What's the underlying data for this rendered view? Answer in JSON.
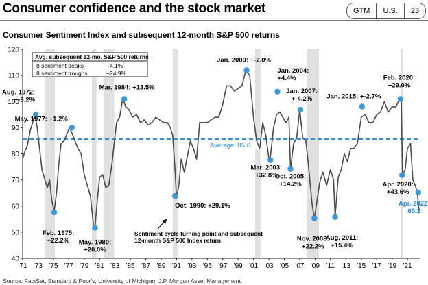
{
  "header": {
    "title": "Consumer confidence and the stock market",
    "badge": [
      "GTM",
      "U.S.",
      "23"
    ]
  },
  "source": "Source: FactSet, Standard & Poor's, University of Michigan, J.P. Morgan Asset Management.",
  "colors": {
    "line": "#4a4a4a",
    "point": "#3a9ad9",
    "average": "#1e88e5",
    "recession": "#e0e0e0",
    "highlight": "#1e88e5"
  },
  "chart_data": {
    "type": "line",
    "title": "Consumer Sentiment Index and subsequent 12-month S&P 500 returns",
    "xlabel": "",
    "ylabel": "",
    "xlim": [
      1971,
      2022.6
    ],
    "ylim": [
      40,
      120
    ],
    "y_ticks": [
      40,
      50,
      60,
      70,
      80,
      90,
      100,
      110,
      120
    ],
    "x_ticks": [
      "'71",
      "'73",
      "'75",
      "'77",
      "'79",
      "'81",
      "'83",
      "'85",
      "'87",
      "'89",
      "'91",
      "'93",
      "'95",
      "'97",
      "'99",
      "'01",
      "'03",
      "'05",
      "'07",
      "'09",
      "'11",
      "'13",
      "'15",
      "'17",
      "'19",
      "'21"
    ],
    "grid": false,
    "recessions": [
      [
        1973.9,
        1975.2
      ],
      [
        1980.0,
        1980.6
      ],
      [
        1981.5,
        1982.9
      ],
      [
        1990.5,
        1991.2
      ],
      [
        2001.2,
        2001.9
      ],
      [
        2007.9,
        2009.5
      ],
      [
        2020.1,
        2020.4
      ]
    ],
    "average": {
      "value": 85.6,
      "label": "Average: 85.6"
    },
    "series": [
      {
        "x": [
          1971.0,
          1971.3,
          1971.6,
          1972.0,
          1972.3,
          1972.6,
          1972.9,
          1973.2,
          1973.5,
          1973.8,
          1974.2,
          1974.5,
          1974.8,
          1975.1,
          1975.4,
          1975.7,
          1976.0,
          1976.4,
          1976.8,
          1977.1,
          1977.4,
          1977.8,
          1978.2,
          1978.6,
          1979.0,
          1979.4,
          1979.8,
          1980.2,
          1980.4,
          1980.7,
          1981.0,
          1981.4,
          1981.8,
          1982.2,
          1982.6,
          1982.9,
          1983.2,
          1983.6,
          1984.0,
          1984.4,
          1984.8,
          1985.3,
          1985.8,
          1986.3,
          1986.8,
          1987.3,
          1987.8,
          1988.3,
          1988.8,
          1989.3,
          1989.8,
          1990.2,
          1990.5,
          1990.8,
          1991.0,
          1991.3,
          1991.6,
          1992.0,
          1992.4,
          1992.8,
          1993.2,
          1993.6,
          1994.0,
          1994.5,
          1995.0,
          1995.5,
          1996.0,
          1996.5,
          1997.0,
          1997.5,
          1998.0,
          1998.5,
          1999.0,
          1999.5,
          2000.0,
          2000.5,
          2001.0,
          2001.4,
          2001.8,
          2002.2,
          2002.6,
          2003.0,
          2003.2,
          2003.6,
          2004.0,
          2004.4,
          2004.8,
          2005.2,
          2005.6,
          2005.8,
          2006.2,
          2006.6,
          2007.0,
          2007.4,
          2007.8,
          2008.2,
          2008.6,
          2008.9,
          2009.2,
          2009.6,
          2010.0,
          2010.5,
          2011.0,
          2011.4,
          2011.6,
          2012.0,
          2012.4,
          2012.8,
          2013.2,
          2013.6,
          2014.0,
          2014.5,
          2015.0,
          2015.5,
          2016.0,
          2016.5,
          2017.0,
          2017.5,
          2018.0,
          2018.5,
          2019.0,
          2019.5,
          2020.0,
          2020.2,
          2020.35,
          2020.7,
          2021.0,
          2021.4,
          2021.7,
          2022.0,
          2022.3,
          2022.5
        ],
        "y": [
          78,
          81,
          83,
          89,
          92,
          95,
          90,
          82,
          74,
          71,
          67,
          70,
          62,
          58,
          65,
          76,
          84,
          85,
          88,
          90,
          88,
          85,
          82,
          80,
          72,
          68,
          64,
          53,
          52,
          62,
          71,
          72,
          67,
          68,
          76,
          84,
          92,
          94,
          101,
          98,
          97,
          94,
          95,
          92,
          93,
          91,
          92,
          94,
          93,
          92,
          92,
          90,
          87,
          74,
          63,
          68,
          78,
          73,
          79,
          85,
          82,
          78,
          92,
          92,
          92,
          93,
          94,
          94,
          99,
          106,
          106,
          104,
          105,
          106,
          112,
          110,
          94,
          85,
          82,
          92,
          87,
          78,
          79,
          90,
          95,
          96,
          94,
          92,
          94,
          74,
          84,
          86,
          97,
          86,
          85,
          74,
          61,
          55,
          61,
          69,
          73,
          68,
          74,
          70,
          56,
          71,
          74,
          80,
          77,
          82,
          82,
          84,
          94,
          95,
          92,
          92,
          95,
          96,
          100,
          96,
          98,
          98,
          101,
          100,
          72,
          74,
          82,
          84,
          70,
          68,
          65,
          58
        ],
        "points": [
          {
            "year": 1972.7,
            "value": 95,
            "label": "Aug. 1972:\n+-6.2%",
            "kind": "peak"
          },
          {
            "year": 1975.1,
            "value": 57.6,
            "label": "Feb. 1975:\n+22.2%",
            "kind": "trough"
          },
          {
            "year": 1977.4,
            "value": 90,
            "label": "May. 1977: +1.2%",
            "kind": "peak"
          },
          {
            "year": 1980.4,
            "value": 51.7,
            "label": "May. 1980:\n+20.0%",
            "kind": "trough"
          },
          {
            "year": 1984.2,
            "value": 101,
            "label": "Mar. 1984: +13.5%",
            "kind": "peak"
          },
          {
            "year": 1990.8,
            "value": 63.9,
            "label": "Oct. 1990: +29.1%",
            "kind": "trough"
          },
          {
            "year": 2000.1,
            "value": 112,
            "label": "Jan. 2000: +-2.0%",
            "kind": "peak"
          },
          {
            "year": 2003.2,
            "value": 77.6,
            "label": "Mar. 2003:\n+32.8%",
            "kind": "trough"
          },
          {
            "year": 2004.1,
            "value": 103.8,
            "label": "Jan. 2004:\n+4.4%",
            "kind": "peak"
          },
          {
            "year": 2005.8,
            "value": 74.2,
            "label": "Oct. 2005:\n+14.2%",
            "kind": "trough"
          },
          {
            "year": 2007.1,
            "value": 96.9,
            "label": "Jan. 2007:\n+-4.2%",
            "kind": "peak"
          },
          {
            "year": 2008.9,
            "value": 55.3,
            "label": "Nov. 2008:\n+22.2%",
            "kind": "trough"
          },
          {
            "year": 2011.6,
            "value": 55.8,
            "label": "Aug. 2011:\n+15.4%",
            "kind": "trough"
          },
          {
            "year": 2015.1,
            "value": 98.1,
            "label": "Jan. 2015: +-2.7%",
            "kind": "peak"
          },
          {
            "year": 2020.1,
            "value": 101,
            "label": "Feb. 2020:\n+29.0%",
            "kind": "peak"
          },
          {
            "year": 2020.3,
            "value": 71.8,
            "label": "Apr. 2020:\n+43.6%",
            "kind": "trough"
          },
          {
            "year": 2022.4,
            "value": 65.2,
            "label": "Apr. 2022:\n65.2",
            "kind": "current"
          }
        ]
      }
    ],
    "summary_table": {
      "header": "Avg. subsequent 12-mo. S&P 500 returns",
      "rows": [
        {
          "label": "8 sentiment peaks",
          "value": "+4.1%"
        },
        {
          "label": "8 sentiment troughs",
          "value": "+24.9%"
        }
      ]
    },
    "annotation": "Sentiment cycle turning point and subsequent\n12-month S&P 500 Index return"
  }
}
